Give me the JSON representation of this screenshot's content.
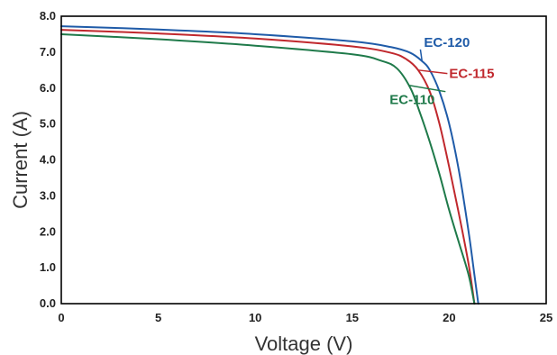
{
  "chart_data": {
    "type": "line",
    "title": "",
    "xlabel": "Voltage (V)",
    "ylabel": "Current (A)",
    "xlim": [
      0,
      25
    ],
    "ylim": [
      0,
      8
    ],
    "xticks": [
      0,
      5,
      10,
      15,
      20,
      25
    ],
    "xtick_labels": [
      "0",
      "5",
      "10",
      "15",
      "20",
      "25"
    ],
    "yticks": [
      0,
      1,
      2,
      3,
      4,
      5,
      6,
      7,
      8
    ],
    "ytick_labels": [
      "0.0",
      "1.0",
      "2.0",
      "3.0",
      "4.0",
      "5.0",
      "6.0",
      "7.0",
      "8.0"
    ],
    "grid": false,
    "legend": "none (series labeled directly with leader lines)",
    "series": [
      {
        "name": "EC-120",
        "color": "#1f5ba8",
        "points": [
          [
            0,
            7.72
          ],
          [
            5,
            7.63
          ],
          [
            10,
            7.5
          ],
          [
            15,
            7.3
          ],
          [
            17,
            7.14
          ],
          [
            18,
            6.98
          ],
          [
            18.6,
            6.75
          ],
          [
            19,
            6.5
          ],
          [
            19.5,
            5.9
          ],
          [
            20,
            5.0
          ],
          [
            20.5,
            3.7
          ],
          [
            21,
            2.0
          ],
          [
            21.3,
            0.8
          ],
          [
            21.5,
            0.0
          ]
        ]
      },
      {
        "name": "EC-115",
        "color": "#c0282d",
        "points": [
          [
            0,
            7.62
          ],
          [
            5,
            7.52
          ],
          [
            10,
            7.38
          ],
          [
            15,
            7.16
          ],
          [
            17,
            6.98
          ],
          [
            17.8,
            6.8
          ],
          [
            18.4,
            6.5
          ],
          [
            19,
            5.9
          ],
          [
            19.5,
            5.0
          ],
          [
            20,
            3.8
          ],
          [
            20.5,
            2.5
          ],
          [
            21,
            1.1
          ],
          [
            21.3,
            0.0
          ]
        ]
      },
      {
        "name": "EC-110",
        "color": "#1f7a4a",
        "points": [
          [
            0,
            7.5
          ],
          [
            5,
            7.36
          ],
          [
            10,
            7.18
          ],
          [
            15,
            6.94
          ],
          [
            16.5,
            6.76
          ],
          [
            17.3,
            6.55
          ],
          [
            18,
            6.0
          ],
          [
            18.5,
            5.3
          ],
          [
            19,
            4.5
          ],
          [
            19.5,
            3.6
          ],
          [
            20,
            2.6
          ],
          [
            20.5,
            1.7
          ],
          [
            21,
            0.8
          ],
          [
            21.3,
            0.0
          ]
        ]
      }
    ],
    "annotations": [
      {
        "text": "EC-120",
        "series": "EC-120",
        "at_x": 18.6,
        "label_x": 18.7,
        "label_y": 7.15,
        "color": "#1f5ba8"
      },
      {
        "text": "EC-115",
        "series": "EC-115",
        "at_x": 18.4,
        "label_x": 20.0,
        "label_y": 6.28,
        "color": "#c0282d"
      },
      {
        "text": "EC-110",
        "series": "EC-110",
        "at_x": 17.9,
        "label_x": 17.3,
        "label_y": 5.55,
        "color": "#1f7a4a"
      }
    ]
  }
}
